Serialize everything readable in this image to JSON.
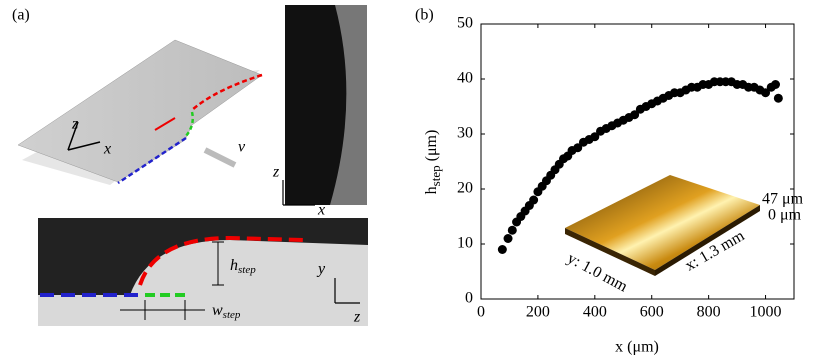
{
  "panel_a": {
    "label": "(a)",
    "diagram_axes": [
      "z",
      "x"
    ],
    "velocity": "v",
    "image_axes": [
      "z",
      "x"
    ],
    "h": "h",
    "h_sub": "step",
    "w": "w",
    "w_sub": "step",
    "photo_axes": [
      "y",
      "z"
    ]
  },
  "chart_data": {
    "type": "scatter",
    "panel_label": "(b)",
    "xlabel": "x (μm)",
    "ylabel": "h",
    "ylabel_sub": "step",
    "ylabel_unit": "(μm)",
    "x": [
      75,
      95,
      110,
      125,
      140,
      155,
      170,
      185,
      200,
      215,
      230,
      245,
      260,
      275,
      290,
      305,
      320,
      340,
      360,
      380,
      400,
      420,
      440,
      460,
      480,
      500,
      520,
      540,
      560,
      580,
      600,
      620,
      640,
      660,
      680,
      700,
      720,
      740,
      760,
      780,
      800,
      820,
      840,
      860,
      880,
      900,
      920,
      940,
      960,
      980,
      1000,
      1020,
      1035,
      1045
    ],
    "values": [
      9,
      11,
      12.5,
      14,
      15,
      16,
      17,
      18,
      19.5,
      20.5,
      21.5,
      22.5,
      23.5,
      24.5,
      25.5,
      26,
      27,
      27.5,
      28.5,
      29,
      29.5,
      30.5,
      31,
      31.5,
      32,
      32.5,
      33,
      33.5,
      34.5,
      35,
      35.5,
      36,
      36.5,
      37,
      37.5,
      37.5,
      38,
      38.5,
      38.5,
      39,
      39,
      39.5,
      39.5,
      39.5,
      39.5,
      39,
      39,
      38.5,
      38.5,
      38,
      37.5,
      38.5,
      39,
      36.5
    ],
    "color": "#000000",
    "xlim": [
      0,
      1100
    ],
    "xticks": [
      0,
      200,
      400,
      600,
      800,
      1000
    ],
    "ylim": [
      0,
      50
    ],
    "yticks": [
      0,
      10,
      20,
      30,
      40,
      50
    ],
    "inset": {
      "top_label": "47 μm",
      "bottom_label": "0 μm",
      "y_label": "y: 1.0 mm",
      "x_label": "x: 1.3 mm"
    }
  }
}
